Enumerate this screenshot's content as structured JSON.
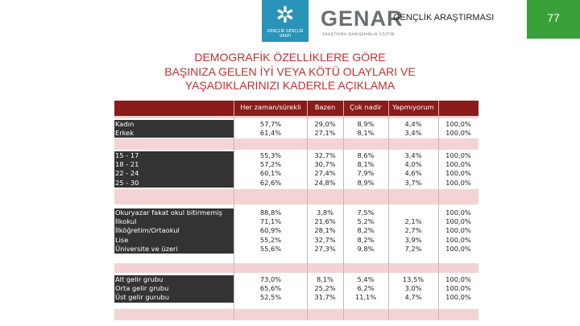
{
  "header": {
    "logo_text": "GENÇLİK GENÇLİK VAKFI",
    "brand": "GENAR",
    "brand_sub": "ARAŞTIRMA DANIŞMANLIK EĞİTİM",
    "section_title": "GENÇLİK ARAŞTIRMASI",
    "page_number": "77",
    "colors": {
      "logo_bg": "#2a93b8",
      "page_bg": "#3aa03a",
      "title": "#c0302e",
      "table_header": "#8b1c1c",
      "label_bg": "#333333",
      "separator": "#f3d3d3"
    }
  },
  "title": {
    "line1": "DEMOGRAFİK ÖZELLİKLERE GÖRE",
    "line2": "BAŞINIZA GELEN İYİ VEYA KÖTÜ OLAYLARI VE",
    "line3": "YAŞADIKLARINIZI KADERLE AÇIKLAMA"
  },
  "table": {
    "columns": [
      "Her zaman/sürekli",
      "Bazen",
      "Çok nadir",
      "Yapmıyorum",
      ""
    ],
    "groups": [
      {
        "labels": [
          "Kadın",
          "Erkek"
        ],
        "cols": [
          [
            "57,7%",
            "61,4%"
          ],
          [
            "29,0%",
            "27,1%"
          ],
          [
            "8,9%",
            "8,1%"
          ],
          [
            "4,4%",
            "3,4%"
          ],
          [
            "100,0%",
            "100,0%"
          ]
        ]
      },
      {
        "labels": [
          "15 - 17",
          "18 - 21",
          "22 - 24",
          "25 - 30"
        ],
        "cols": [
          [
            "55,3%",
            "57,2%",
            "60,1%",
            "62,6%"
          ],
          [
            "32,7%",
            "30,7%",
            "27,4%",
            "24,8%"
          ],
          [
            "8,6%",
            "8,1%",
            "7,9%",
            "8,9%"
          ],
          [
            "3,4%",
            "4,0%",
            "4,6%",
            "3,7%"
          ],
          [
            "100,0%",
            "100,0%",
            "100,0%",
            "100,0%"
          ]
        ]
      },
      {
        "labels": [
          "Okuryazar fakat okul bitirmemiş",
          "İlkokul",
          "İlköğretim/Ortaokul",
          "Lise",
          "Üniversite ve üzeri"
        ],
        "cols": [
          [
            "88,8%",
            "71,1%",
            "60,9%",
            "55,2%",
            "55,6%"
          ],
          [
            "3,8%",
            "21,6%",
            "28,1%",
            "32,7%",
            "27,3%"
          ],
          [
            "7,5%",
            "5,2%",
            "8,2%",
            "8,2%",
            "9,8%"
          ],
          [
            "",
            "2,1%",
            "2,7%",
            "3,9%",
            "7,2%"
          ],
          [
            "100,0%",
            "100,0%",
            "100,0%",
            "100,0%",
            "100,0%"
          ]
        ]
      },
      {
        "labels": [
          "Alt gelir grubu",
          "Orta gelir grubu",
          "Üst gelir gurubu"
        ],
        "cols": [
          [
            "73,0%",
            "65,6%",
            "52,5%"
          ],
          [
            "8,1%",
            "25,2%",
            "31,7%"
          ],
          [
            "5,4%",
            "6,2%",
            "11,1%"
          ],
          [
            "13,5%",
            "3,0%",
            "4,7%"
          ],
          [
            "100,0%",
            "100,0%",
            "100,0%"
          ]
        ]
      }
    ]
  }
}
